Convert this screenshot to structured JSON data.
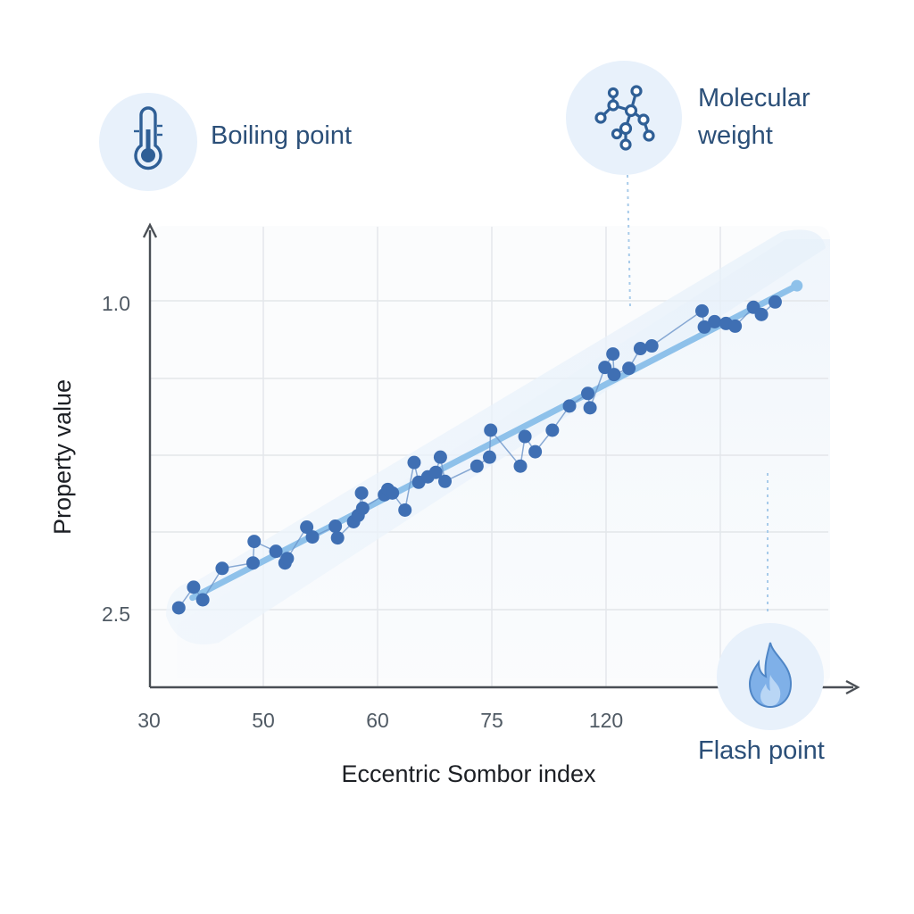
{
  "chart_data": {
    "type": "scatter",
    "xlabel": "Eccentric Sombor index",
    "ylabel": "Property value",
    "x_ticks": [
      "30",
      "50",
      "60",
      "75",
      "120"
    ],
    "y_ticks": [
      "1.0",
      "2.5"
    ],
    "grid": true,
    "trend_line": true,
    "series": [
      {
        "x": [
          0.26,
          0.39,
          0.47,
          0.64,
          0.91,
          0.92,
          1.11,
          1.19,
          1.21,
          1.38,
          1.43,
          1.63,
          1.65,
          1.79,
          1.83,
          1.86,
          1.87,
          2.06,
          2.09,
          2.13,
          2.24,
          2.32,
          2.36,
          2.44,
          2.51,
          2.55,
          2.59,
          2.87,
          2.98,
          2.99,
          3.25,
          3.29,
          3.38,
          3.53,
          3.68,
          3.84,
          3.86,
          3.99,
          4.06,
          4.07,
          4.2,
          4.3,
          4.4,
          4.84,
          4.86,
          4.95,
          5.05,
          5.13,
          5.29,
          5.36,
          5.48
        ],
        "y": [
          0.03,
          0.26,
          0.12,
          0.47,
          0.53,
          0.77,
          0.66,
          0.53,
          0.58,
          0.93,
          0.82,
          0.94,
          0.81,
          0.99,
          1.06,
          1.31,
          1.14,
          1.29,
          1.35,
          1.31,
          1.12,
          1.65,
          1.43,
          1.49,
          1.54,
          1.71,
          1.44,
          1.61,
          1.71,
          2.01,
          1.61,
          1.94,
          1.77,
          2.01,
          2.28,
          2.42,
          2.26,
          2.71,
          2.86,
          2.63,
          2.7,
          2.92,
          2.95,
          3.34,
          3.16,
          3.22,
          3.2,
          3.17,
          3.38,
          3.3,
          3.44
        ]
      }
    ],
    "callouts": [
      {
        "label": "Boiling point",
        "icon": "thermometer-icon"
      },
      {
        "label": "Molecular\nweight",
        "icon": "molecule-icon"
      },
      {
        "label": "Flash point",
        "icon": "flame-icon"
      }
    ],
    "colors": {
      "points": "#3f6fb3",
      "trend": "#8ec1ea",
      "callout_text": "#2b4f78",
      "icon_bg": "#e8f1fb",
      "grid": "#e3e6ea"
    }
  }
}
